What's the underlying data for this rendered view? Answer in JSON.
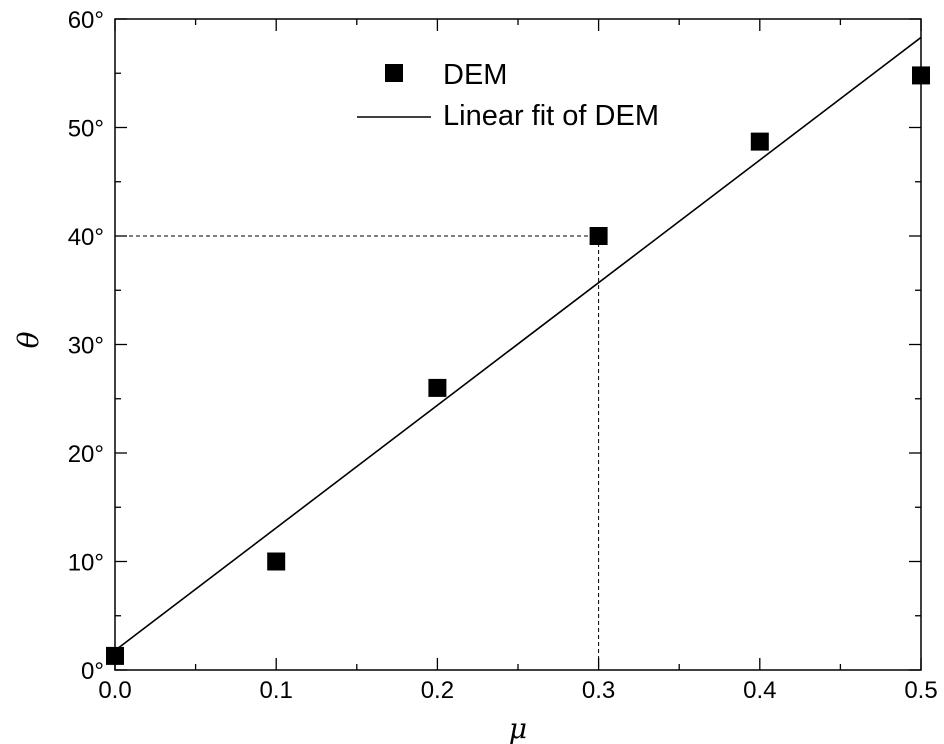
{
  "chart_data": {
    "type": "scatter",
    "title": "",
    "xlabel": "μ",
    "ylabel": "θ",
    "xlim": [
      0.0,
      0.5
    ],
    "ylim": [
      0,
      60
    ],
    "x_ticks": [
      {
        "value": 0.0,
        "label": "0.0"
      },
      {
        "value": 0.1,
        "label": "0.1"
      },
      {
        "value": 0.2,
        "label": "0.2"
      },
      {
        "value": 0.3,
        "label": "0.3"
      },
      {
        "value": 0.4,
        "label": "0.4"
      },
      {
        "value": 0.5,
        "label": "0.5"
      }
    ],
    "y_ticks": [
      {
        "value": 0,
        "label": "0°"
      },
      {
        "value": 10,
        "label": "10°"
      },
      {
        "value": 20,
        "label": "20°"
      },
      {
        "value": 30,
        "label": "30°"
      },
      {
        "value": 40,
        "label": "40°"
      },
      {
        "value": 50,
        "label": "50°"
      },
      {
        "value": 60,
        "label": "60°"
      }
    ],
    "grid": false,
    "legend_position": "top-center",
    "series": [
      {
        "name": "DEM",
        "kind": "scatter",
        "marker": "square",
        "color": "#000000",
        "x": [
          0.0,
          0.1,
          0.2,
          0.3,
          0.4,
          0.5
        ],
        "y": [
          1.3,
          10.0,
          26.0,
          40.0,
          48.7,
          54.8
        ]
      },
      {
        "name": "Linear fit of DEM",
        "kind": "line",
        "color": "#000000",
        "x": [
          0.0,
          0.5
        ],
        "y": [
          1.8,
          58.3
        ]
      }
    ],
    "annotations": [
      {
        "type": "dashed-guide",
        "x": 0.3,
        "y": 40
      }
    ]
  }
}
